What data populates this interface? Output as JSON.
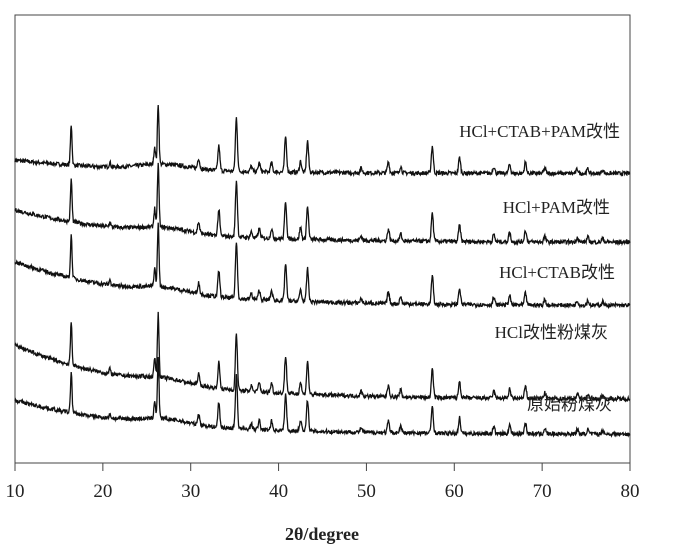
{
  "chart_data": {
    "type": "line",
    "title": "",
    "xlabel": "2θ/degree",
    "ylabel": "",
    "xlim": [
      10,
      80
    ],
    "ylim": [
      0,
      100
    ],
    "xticks": [
      10,
      20,
      30,
      40,
      50,
      60,
      70,
      80
    ],
    "grid": false,
    "legend": "inline labels at right of each trace",
    "line_color": "#111111",
    "peaks_2theta": [
      16.4,
      20.8,
      25.9,
      26.3,
      30.9,
      33.2,
      35.2,
      36.9,
      37.8,
      39.2,
      40.8,
      42.5,
      43.3,
      49.4,
      52.5,
      53.9,
      57.5,
      60.6,
      64.5,
      66.3,
      68.1,
      70.3,
      74.0,
      75.2,
      76.9
    ],
    "peak_intensities": [
      9,
      1,
      4,
      13.5,
      2.3,
      5.5,
      12,
      1.2,
      2,
      2,
      8,
      2.5,
      7,
      1,
      2.5,
      1.5,
      6,
      3.5,
      1.5,
      2,
      2.5,
      1.2,
      1,
      1,
      0.8
    ],
    "series": [
      {
        "name": "HCl+CTAB+PAM改性",
        "baseline_start": 67.6,
        "baseline_end": 65.0,
        "peak_scale": 1.0
      },
      {
        "name": "HCl+PAM改性",
        "baseline_start": 56.5,
        "baseline_end": 50.2,
        "peak_scale": 1.05
      },
      {
        "name": "HCl+CTAB改性",
        "baseline_start": 44.9,
        "baseline_end": 36.4,
        "peak_scale": 1.05
      },
      {
        "name": "HCl改性粉煤灰",
        "baseline_start": 26.3,
        "baseline_end": 15.8,
        "peak_scale": 1.05
      },
      {
        "name": "原始粉煤灰",
        "baseline_start": 14.0,
        "baseline_end": 7.4,
        "peak_scale": 1.0
      }
    ]
  }
}
